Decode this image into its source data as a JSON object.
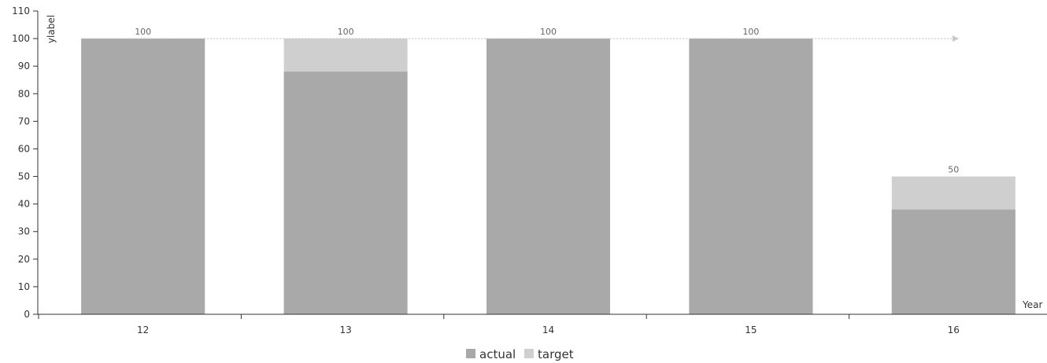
{
  "chart_data": {
    "type": "bar",
    "categories": [
      "12",
      "13",
      "14",
      "15",
      "16"
    ],
    "series": [
      {
        "name": "actual",
        "values": [
          100,
          88,
          100,
          100,
          38
        ]
      },
      {
        "name": "target",
        "values": [
          100,
          100,
          100,
          100,
          50
        ]
      }
    ],
    "data_labels": [
      100,
      100,
      100,
      100,
      50
    ],
    "target_line_value": 100,
    "xlabel": "Year",
    "ylabel": "ylabel",
    "ylim": [
      0,
      110
    ],
    "yticks": [
      0,
      10,
      20,
      30,
      40,
      50,
      60,
      70,
      80,
      90,
      100,
      110
    ],
    "grid": false,
    "legend_position": "bottom-center",
    "colors": {
      "actual": "#a9a9a9",
      "target": "#cfcfcf",
      "target_line": "#c8c8c8",
      "axis": "#333333"
    }
  }
}
